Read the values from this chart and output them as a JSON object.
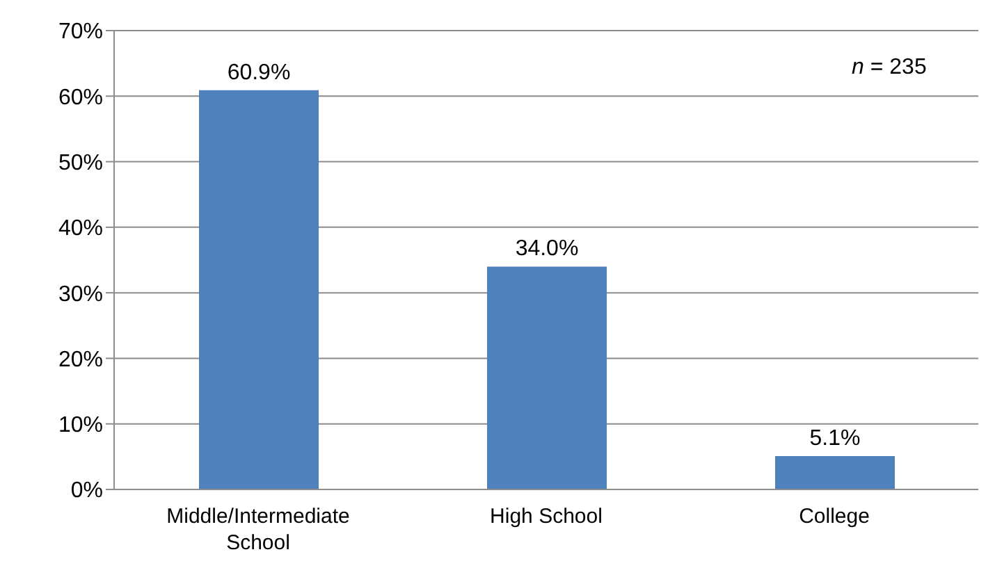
{
  "chart_data": {
    "type": "bar",
    "categories": [
      "Middle/Intermediate School",
      "High School",
      "College"
    ],
    "values": [
      60.9,
      34.0,
      5.1
    ],
    "value_labels": [
      "60.9%",
      "34.0%",
      "5.1%"
    ],
    "color": "#4f81bd",
    "ylim": [
      0,
      70
    ],
    "yticks": [
      {
        "value": 0,
        "label": "0%"
      },
      {
        "value": 10,
        "label": "10%"
      },
      {
        "value": 20,
        "label": "20%"
      },
      {
        "value": 30,
        "label": "30%"
      },
      {
        "value": 40,
        "label": "40%"
      },
      {
        "value": 50,
        "label": "50%"
      },
      {
        "value": 60,
        "label": "60%"
      },
      {
        "value": 70,
        "label": "70%"
      }
    ],
    "grid": "y",
    "annotations": [
      "n = 235"
    ]
  }
}
